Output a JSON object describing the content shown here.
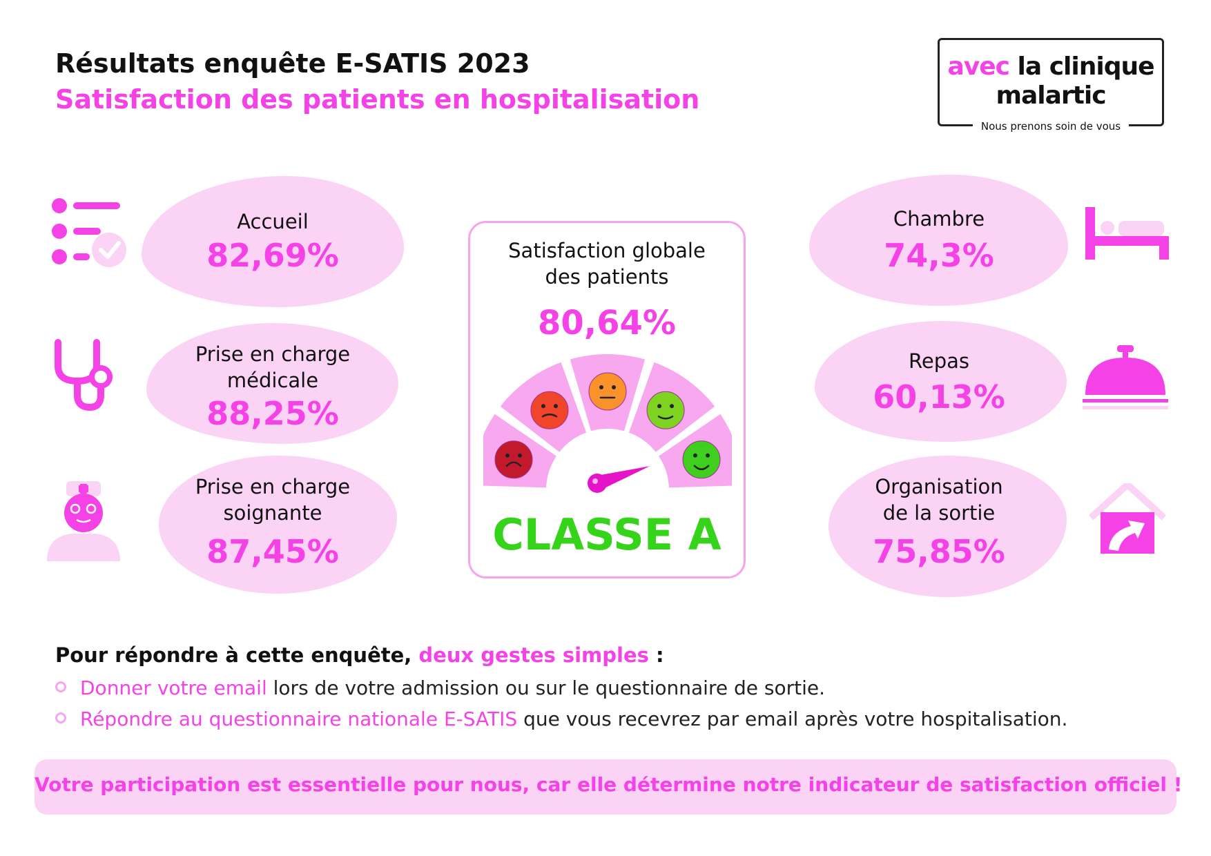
{
  "header": {
    "title": "Résultats enquête E-SATIS 2023",
    "subtitle": "Satisfaction des patients en hospitalisation"
  },
  "logo": {
    "line1_pink": "avec",
    "line1_dark": "la clinique",
    "line2": "malartic",
    "tagline": "Nous prenons soin de vous"
  },
  "left_items": [
    {
      "icon": "checklist-icon",
      "label_lines": [
        "Accueil"
      ],
      "value": "82,69%"
    },
    {
      "icon": "stethoscope-icon",
      "label_lines": [
        "Prise en charge",
        "médicale"
      ],
      "value": "88,25%"
    },
    {
      "icon": "nurse-icon",
      "label_lines": [
        "Prise en charge",
        "soignante"
      ],
      "value": "87,45%"
    }
  ],
  "right_items": [
    {
      "icon": "bed-icon",
      "label_lines": [
        "Chambre"
      ],
      "value": "74,3%"
    },
    {
      "icon": "cloche-icon",
      "label_lines": [
        "Repas"
      ],
      "value": "60,13%"
    },
    {
      "icon": "house-exit-icon",
      "label_lines": [
        "Organisation",
        "de la sortie"
      ],
      "value": "75,85%"
    }
  ],
  "center": {
    "label_lines": [
      "Satisfaction globale",
      "des patients"
    ],
    "value": "80,64%",
    "grade": "CLASSE A",
    "gauge_level": 5,
    "gauge_segments": 5
  },
  "instructions": {
    "title_dark": "Pour répondre à cette enquête,",
    "title_pink": "deux gestes simples",
    "title_end": " :",
    "bullets": [
      {
        "pink": "Donner votre email",
        "rest": " lors de votre admission ou sur le questionnaire de sortie."
      },
      {
        "pink": "Répondre au questionnaire nationale E-SATIS",
        "rest": " que vous recevrez par email après votre hospitalisation."
      }
    ]
  },
  "banner": "Votre participation est essentielle pour nous, car elle détermine notre indicateur de satisfaction officiel !",
  "colors": {
    "accent": "#f542e6",
    "blob": "#fbd4f5",
    "grade": "#35d41a"
  }
}
